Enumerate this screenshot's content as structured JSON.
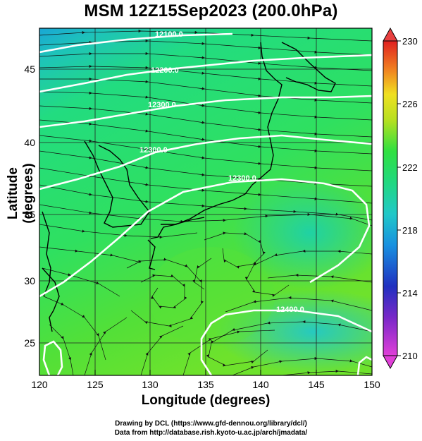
{
  "title": "MSM 12Z15Sep2023 (200.0hPa)",
  "x_axis": {
    "label": "Longitude (degrees)",
    "ticks": [
      "120",
      "125",
      "130",
      "135",
      "140",
      "145",
      "150"
    ]
  },
  "y_axis": {
    "label": "Latitude  (degrees)",
    "ticks": [
      "25",
      "30",
      "35",
      "40",
      "45"
    ]
  },
  "colorbar": {
    "ticks": [
      "230",
      "226",
      "222",
      "218",
      "214",
      "210"
    ],
    "min": 210,
    "max": 230
  },
  "contour_labels": [
    "12100.0",
    "12200.0",
    "12300.0",
    "12300.0",
    "12300.0",
    "12400.0"
  ],
  "credits": [
    "Drawing by DCL (https://www.gfd-dennou.org/library/dcl/)",
    "Data from http://database.rish.kyoto-u.ac.jp/arch/jmadata/"
  ]
}
